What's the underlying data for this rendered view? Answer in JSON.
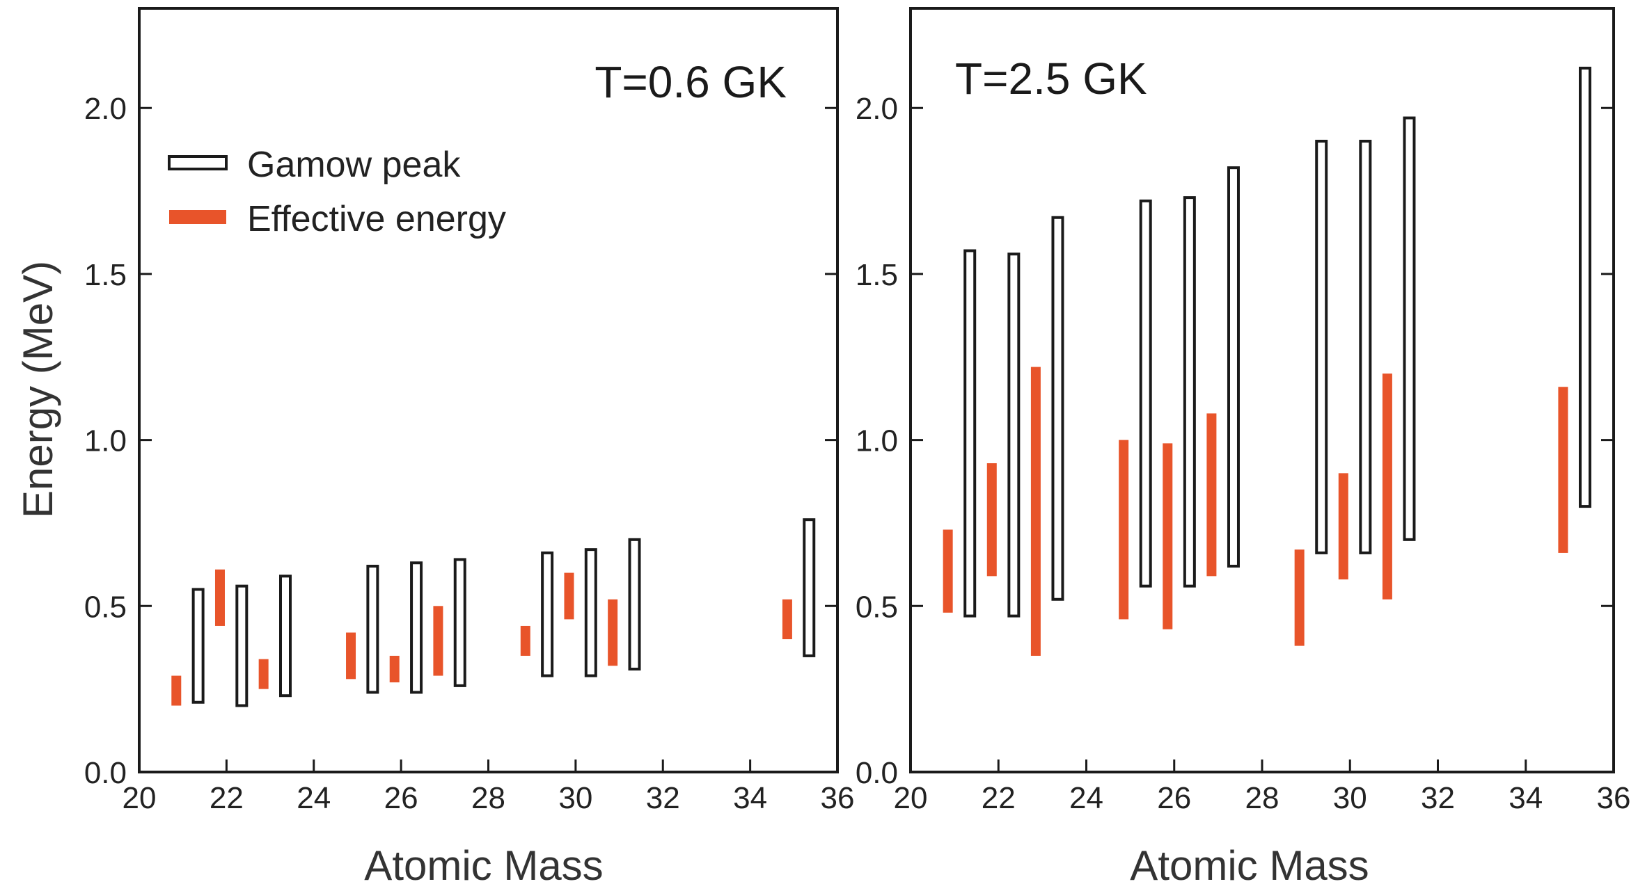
{
  "colors": {
    "gamow": "#1a1a1a",
    "effective": "#e8542a",
    "background": "#ffffff",
    "axis": "#1a1a1a"
  },
  "y_axis_title": "Energy   (MeV)",
  "legend": {
    "gamow_label": "Gamow peak",
    "effective_label": "Effective energy"
  },
  "chart_data": [
    {
      "type": "range-bar",
      "panel_label": "T=0.6 GK",
      "xlabel": "Atomic Mass",
      "ylabel": "Energy   (MeV)",
      "xlim": [
        20,
        36
      ],
      "ylim": [
        0.0,
        2.3
      ],
      "x_ticks": [
        "20",
        "22",
        "24",
        "26",
        "28",
        "30",
        "32",
        "34",
        "36"
      ],
      "y_ticks": [
        "0.0",
        "0.5",
        "1.0",
        "1.5",
        "2.0"
      ],
      "legend_position": "upper-left",
      "series": [
        {
          "name": "Gamow peak",
          "points": [
            {
              "x": 21,
              "low": 0.21,
              "high": 0.55
            },
            {
              "x": 22,
              "low": 0.2,
              "high": 0.56
            },
            {
              "x": 23,
              "low": 0.23,
              "high": 0.59
            },
            {
              "x": 25,
              "low": 0.24,
              "high": 0.62
            },
            {
              "x": 26,
              "low": 0.24,
              "high": 0.63
            },
            {
              "x": 27,
              "low": 0.26,
              "high": 0.64
            },
            {
              "x": 29,
              "low": 0.29,
              "high": 0.66
            },
            {
              "x": 30,
              "low": 0.29,
              "high": 0.67
            },
            {
              "x": 31,
              "low": 0.31,
              "high": 0.7
            },
            {
              "x": 35,
              "low": 0.35,
              "high": 0.76
            }
          ]
        },
        {
          "name": "Effective energy",
          "points": [
            {
              "x": 21,
              "low": 0.2,
              "high": 0.29
            },
            {
              "x": 22,
              "low": 0.44,
              "high": 0.61
            },
            {
              "x": 23,
              "low": 0.25,
              "high": 0.34
            },
            {
              "x": 25,
              "low": 0.28,
              "high": 0.42
            },
            {
              "x": 26,
              "low": 0.27,
              "high": 0.35
            },
            {
              "x": 27,
              "low": 0.29,
              "high": 0.5
            },
            {
              "x": 29,
              "low": 0.35,
              "high": 0.44
            },
            {
              "x": 30,
              "low": 0.46,
              "high": 0.6
            },
            {
              "x": 31,
              "low": 0.32,
              "high": 0.52
            },
            {
              "x": 35,
              "low": 0.4,
              "high": 0.52
            }
          ]
        }
      ]
    },
    {
      "type": "range-bar",
      "panel_label": "T=2.5 GK",
      "xlabel": "Atomic Mass",
      "ylabel": "",
      "xlim": [
        20,
        36
      ],
      "ylim": [
        0.0,
        2.3
      ],
      "x_ticks": [
        "20",
        "22",
        "24",
        "26",
        "28",
        "30",
        "32",
        "34",
        "36"
      ],
      "y_ticks": [
        "0.0",
        "0.5",
        "1.0",
        "1.5",
        "2.0"
      ],
      "series": [
        {
          "name": "Gamow peak",
          "points": [
            {
              "x": 21,
              "low": 0.47,
              "high": 1.57
            },
            {
              "x": 22,
              "low": 0.47,
              "high": 1.56
            },
            {
              "x": 23,
              "low": 0.52,
              "high": 1.67
            },
            {
              "x": 25,
              "low": 0.56,
              "high": 1.72
            },
            {
              "x": 26,
              "low": 0.56,
              "high": 1.73
            },
            {
              "x": 27,
              "low": 0.62,
              "high": 1.82
            },
            {
              "x": 29,
              "low": 0.66,
              "high": 1.9
            },
            {
              "x": 30,
              "low": 0.66,
              "high": 1.9
            },
            {
              "x": 31,
              "low": 0.7,
              "high": 1.97
            },
            {
              "x": 35,
              "low": 0.8,
              "high": 2.12
            }
          ]
        },
        {
          "name": "Effective energy",
          "points": [
            {
              "x": 21,
              "low": 0.48,
              "high": 0.73
            },
            {
              "x": 22,
              "low": 0.59,
              "high": 0.93
            },
            {
              "x": 23,
              "low": 0.35,
              "high": 1.22
            },
            {
              "x": 25,
              "low": 0.46,
              "high": 1.0
            },
            {
              "x": 26,
              "low": 0.43,
              "high": 0.99
            },
            {
              "x": 27,
              "low": 0.59,
              "high": 1.08
            },
            {
              "x": 29,
              "low": 0.38,
              "high": 0.67
            },
            {
              "x": 30,
              "low": 0.58,
              "high": 0.9
            },
            {
              "x": 31,
              "low": 0.52,
              "high": 1.2
            },
            {
              "x": 35,
              "low": 0.66,
              "high": 1.16
            }
          ]
        }
      ]
    }
  ]
}
